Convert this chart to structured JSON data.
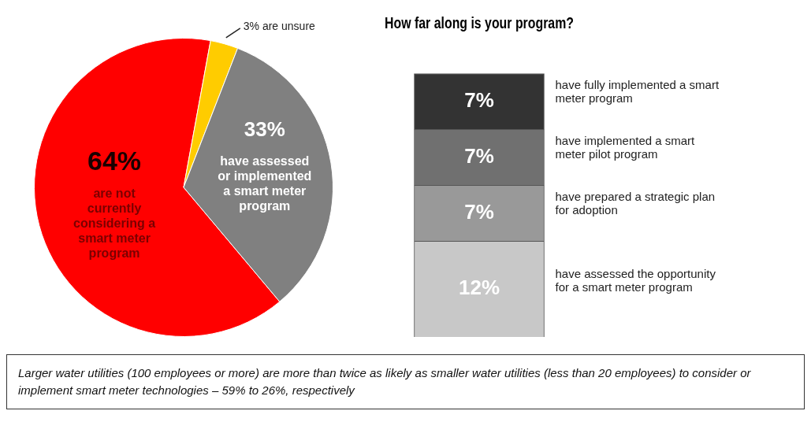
{
  "chart_data": [
    {
      "type": "pie",
      "categories": [
        "are not currently considering a smart meter program",
        "are unsure",
        "have assessed or implemented a smart meter program"
      ],
      "values": [
        64,
        3,
        33
      ],
      "value_labels": [
        "64%",
        "3%",
        "33%"
      ],
      "colors": [
        "#ff0000",
        "#ffcc00",
        "#808080"
      ],
      "annotations": [
        "Larger water utilities (100 employees or more) are more than twice as likely as smaller water utilities (less than 20 employees) to consider or implement smart meter technologies – 59% to 26%, respectively"
      ]
    },
    {
      "type": "bar",
      "stacked": true,
      "title": "How far along is your program?",
      "categories": [
        null
      ],
      "series": [
        {
          "name": "have assessed the opportunity for a smart meter program",
          "color": "#c8c8c8",
          "values": [
            12
          ],
          "value_labels": [
            "12%"
          ]
        },
        {
          "name": "have prepared a strategic plan for adoption",
          "color": "#999999",
          "values": [
            7
          ],
          "value_labels": [
            "7%"
          ]
        },
        {
          "name": "have implemented a smart meter pilot program",
          "color": "#707070",
          "values": [
            7
          ],
          "value_labels": [
            "7%"
          ]
        },
        {
          "name": "have fully implemented a smart meter program",
          "color": "#333333",
          "values": [
            7
          ],
          "value_labels": [
            "7%"
          ]
        }
      ]
    }
  ]
}
